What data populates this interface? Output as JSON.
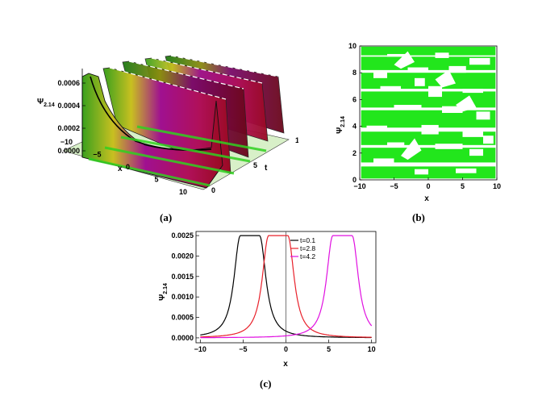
{
  "chart_data": [
    {
      "id": "a",
      "type": "surface3d",
      "caption": "(a)",
      "zlabel": "Ψ",
      "zlabel_sub": "2.14",
      "xlabel": "x",
      "ylabel": "t",
      "z_ticks": [
        "0.0000",
        "0.0002",
        "0.0004",
        "0.0006"
      ],
      "x_ticks": [
        "−10",
        "−5",
        "0",
        "5",
        "10"
      ],
      "t_ticks": [
        "0",
        "5",
        "10"
      ],
      "x_range": [
        -10,
        10
      ],
      "t_range": [
        0,
        10
      ],
      "z_range": [
        0,
        0.00065
      ],
      "description_colors": [
        "#3aa01e",
        "#e0d020",
        "#b0108a",
        "#a00a28"
      ]
    },
    {
      "id": "b",
      "type": "contour",
      "caption": "(b)",
      "xlabel": "x",
      "ylabel": "Ψ",
      "ylabel_sub": "2.14",
      "x_ticks": [
        "−10",
        "−5",
        "0",
        "5",
        "10"
      ],
      "y_ticks": [
        "0",
        "2",
        "4",
        "6",
        "8",
        "10"
      ],
      "x_range": [
        -10,
        10
      ],
      "y_range": [
        0,
        10
      ],
      "fill_color": "#22e61c"
    },
    {
      "id": "c",
      "type": "line",
      "caption": "(c)",
      "xlabel": "x",
      "ylabel": "Ψ",
      "ylabel_sub": "2.14",
      "x_ticks": [
        "−10",
        "−5",
        "0",
        "5",
        "10"
      ],
      "y_ticks": [
        "0.0000",
        "0.0005",
        "0.0010",
        "0.0015",
        "0.0020",
        "0.0025"
      ],
      "xlim": [
        -10.5,
        10.5
      ],
      "ylim": [
        -0.00012,
        0.0026
      ],
      "series": [
        {
          "name": "t=0.1",
          "color": "#000000",
          "center": -4.2,
          "peak": 0.0025,
          "plateau_halfwidth": 1.1
        },
        {
          "name": "t=2.8",
          "color": "#e8202a",
          "center": -0.9,
          "peak": 0.0025,
          "plateau_halfwidth": 1.1
        },
        {
          "name": "t=4.2",
          "color": "#e010e0",
          "center": 6.6,
          "peak": 0.0025,
          "plateau_halfwidth": 1.1
        }
      ]
    }
  ]
}
